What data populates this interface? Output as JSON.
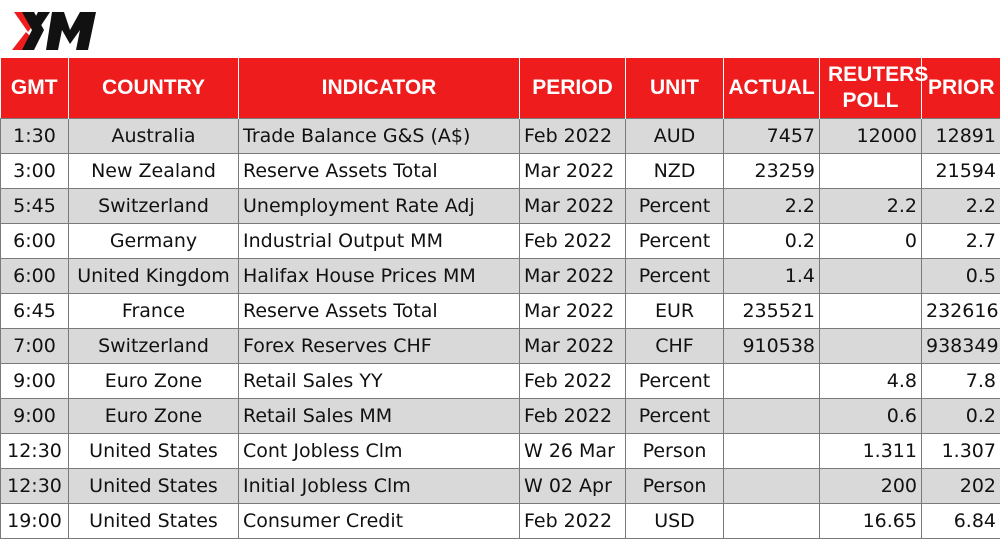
{
  "brand": {
    "logo_text": "XM",
    "accent_color": "#ee1c1c"
  },
  "columns": [
    "GMT",
    "COUNTRY",
    "INDICATOR",
    "PERIOD",
    "UNIT",
    "ACTUAL",
    "REUTERS POLL",
    "PRIOR"
  ],
  "rows": [
    {
      "gmt": "1:30",
      "country": "Australia",
      "indicator": "Trade Balance G&S (A$)",
      "period": "Feb 2022",
      "unit": "AUD",
      "actual": "7457",
      "poll": "12000",
      "prior": "12891"
    },
    {
      "gmt": "3:00",
      "country": "New Zealand",
      "indicator": "Reserve Assets Total",
      "period": "Mar 2022",
      "unit": "NZD",
      "actual": "23259",
      "poll": "",
      "prior": "21594"
    },
    {
      "gmt": "5:45",
      "country": "Switzerland",
      "indicator": "Unemployment Rate Adj",
      "period": "Mar 2022",
      "unit": "Percent",
      "actual": "2.2",
      "poll": "2.2",
      "prior": "2.2"
    },
    {
      "gmt": "6:00",
      "country": "Germany",
      "indicator": "Industrial Output MM",
      "period": "Feb 2022",
      "unit": "Percent",
      "actual": "0.2",
      "poll": "0",
      "prior": "2.7"
    },
    {
      "gmt": "6:00",
      "country": "United Kingdom",
      "indicator": "Halifax House Prices MM",
      "period": "Mar 2022",
      "unit": "Percent",
      "actual": "1.4",
      "poll": "",
      "prior": "0.5"
    },
    {
      "gmt": "6:45",
      "country": "France",
      "indicator": "Reserve Assets Total",
      "period": "Mar 2022",
      "unit": "EUR",
      "actual": "235521",
      "poll": "",
      "prior": "232616"
    },
    {
      "gmt": "7:00",
      "country": "Switzerland",
      "indicator": "Forex Reserves CHF",
      "period": "Mar 2022",
      "unit": "CHF",
      "actual": "910538",
      "poll": "",
      "prior": "938349"
    },
    {
      "gmt": "9:00",
      "country": "Euro Zone",
      "indicator": "Retail Sales YY",
      "period": "Feb 2022",
      "unit": "Percent",
      "actual": "",
      "poll": "4.8",
      "prior": "7.8"
    },
    {
      "gmt": "9:00",
      "country": "Euro Zone",
      "indicator": "Retail Sales MM",
      "period": "Feb 2022",
      "unit": "Percent",
      "actual": "",
      "poll": "0.6",
      "prior": "0.2"
    },
    {
      "gmt": "12:30",
      "country": "United States",
      "indicator": "Cont Jobless Clm",
      "period": "W 26 Mar",
      "unit": "Person",
      "actual": "",
      "poll": "1.311",
      "prior": "1.307"
    },
    {
      "gmt": "12:30",
      "country": "United States",
      "indicator": "Initial Jobless Clm",
      "period": "W 02 Apr",
      "unit": "Person",
      "actual": "",
      "poll": "200",
      "prior": "202"
    },
    {
      "gmt": "19:00",
      "country": "United States",
      "indicator": "Consumer Credit",
      "period": "Feb 2022",
      "unit": "USD",
      "actual": "",
      "poll": "16.65",
      "prior": "6.84"
    }
  ]
}
